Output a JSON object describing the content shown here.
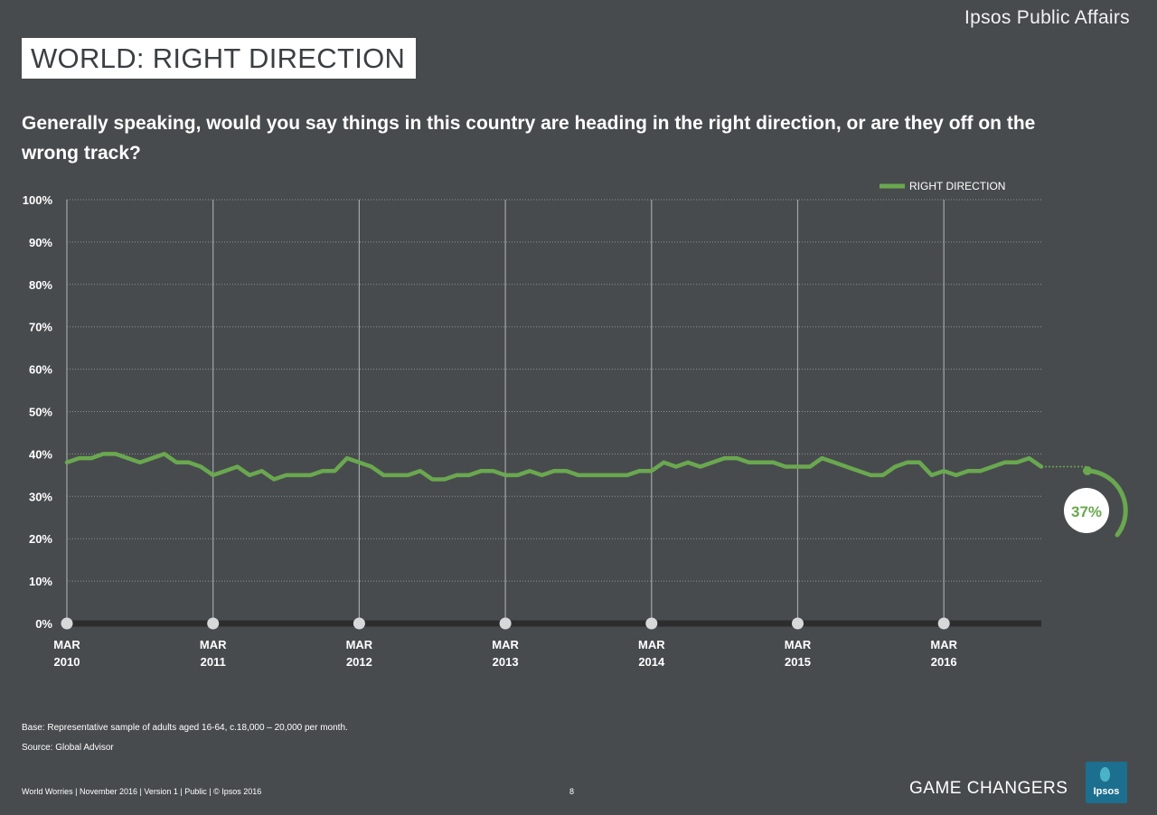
{
  "header": {
    "brand": "Ipsos Public Affairs",
    "title": "WORLD: RIGHT DIRECTION",
    "question": "Generally speaking, would you say things in this country are heading in the right direction, or are they off on the wrong track?"
  },
  "chart_data": {
    "type": "line",
    "title": "WORLD: RIGHT DIRECTION",
    "xlabel": "",
    "ylabel": "",
    "ylim": [
      0,
      100
    ],
    "y_ticks": [
      "0%",
      "10%",
      "20%",
      "30%",
      "40%",
      "50%",
      "60%",
      "70%",
      "80%",
      "90%",
      "100%"
    ],
    "x_ticks": [
      {
        "month": "MAR",
        "year": "2010"
      },
      {
        "month": "MAR",
        "year": "2011"
      },
      {
        "month": "MAR",
        "year": "2012"
      },
      {
        "month": "MAR",
        "year": "2013"
      },
      {
        "month": "MAR",
        "year": "2014"
      },
      {
        "month": "MAR",
        "year": "2015"
      },
      {
        "month": "MAR",
        "year": "2016"
      }
    ],
    "x_start": "Mar 2010",
    "x_end": "Oct 2016",
    "grid": "horizontal dotted, vertical lines at each March",
    "legend_position": "top-right",
    "series": [
      {
        "name": "RIGHT DIRECTION",
        "color": "#6aa84f",
        "values": [
          38,
          39,
          39,
          40,
          40,
          39,
          38,
          39,
          40,
          38,
          38,
          37,
          35,
          36,
          37,
          35,
          36,
          34,
          35,
          35,
          35,
          36,
          36,
          39,
          38,
          37,
          35,
          35,
          35,
          36,
          34,
          34,
          35,
          35,
          36,
          36,
          35,
          35,
          36,
          35,
          36,
          36,
          35,
          35,
          35,
          35,
          35,
          36,
          36,
          38,
          37,
          38,
          37,
          38,
          39,
          39,
          38,
          38,
          38,
          37,
          37,
          37,
          39,
          38,
          37,
          36,
          35,
          35,
          37,
          38,
          38,
          35,
          36,
          35,
          36,
          36,
          37,
          38,
          38,
          39,
          37
        ]
      }
    ],
    "annotations": [
      {
        "text": "37%",
        "series": "RIGHT DIRECTION",
        "point": "last"
      }
    ]
  },
  "notes": {
    "base": "Base: Representative sample of adults aged 16-64, c.18,000 – 20,000 per month.",
    "source": "Source: Global Advisor"
  },
  "footer": {
    "left": "World Worries | November 2016 |  Version 1  |  Public | © Ipsos 2016",
    "page": "8",
    "tagline": "GAME CHANGERS",
    "logo_text": "Ipsos"
  },
  "colors": {
    "background": "#484b4e",
    "line": "#6aa84f",
    "axis": "#2b2d2f"
  }
}
